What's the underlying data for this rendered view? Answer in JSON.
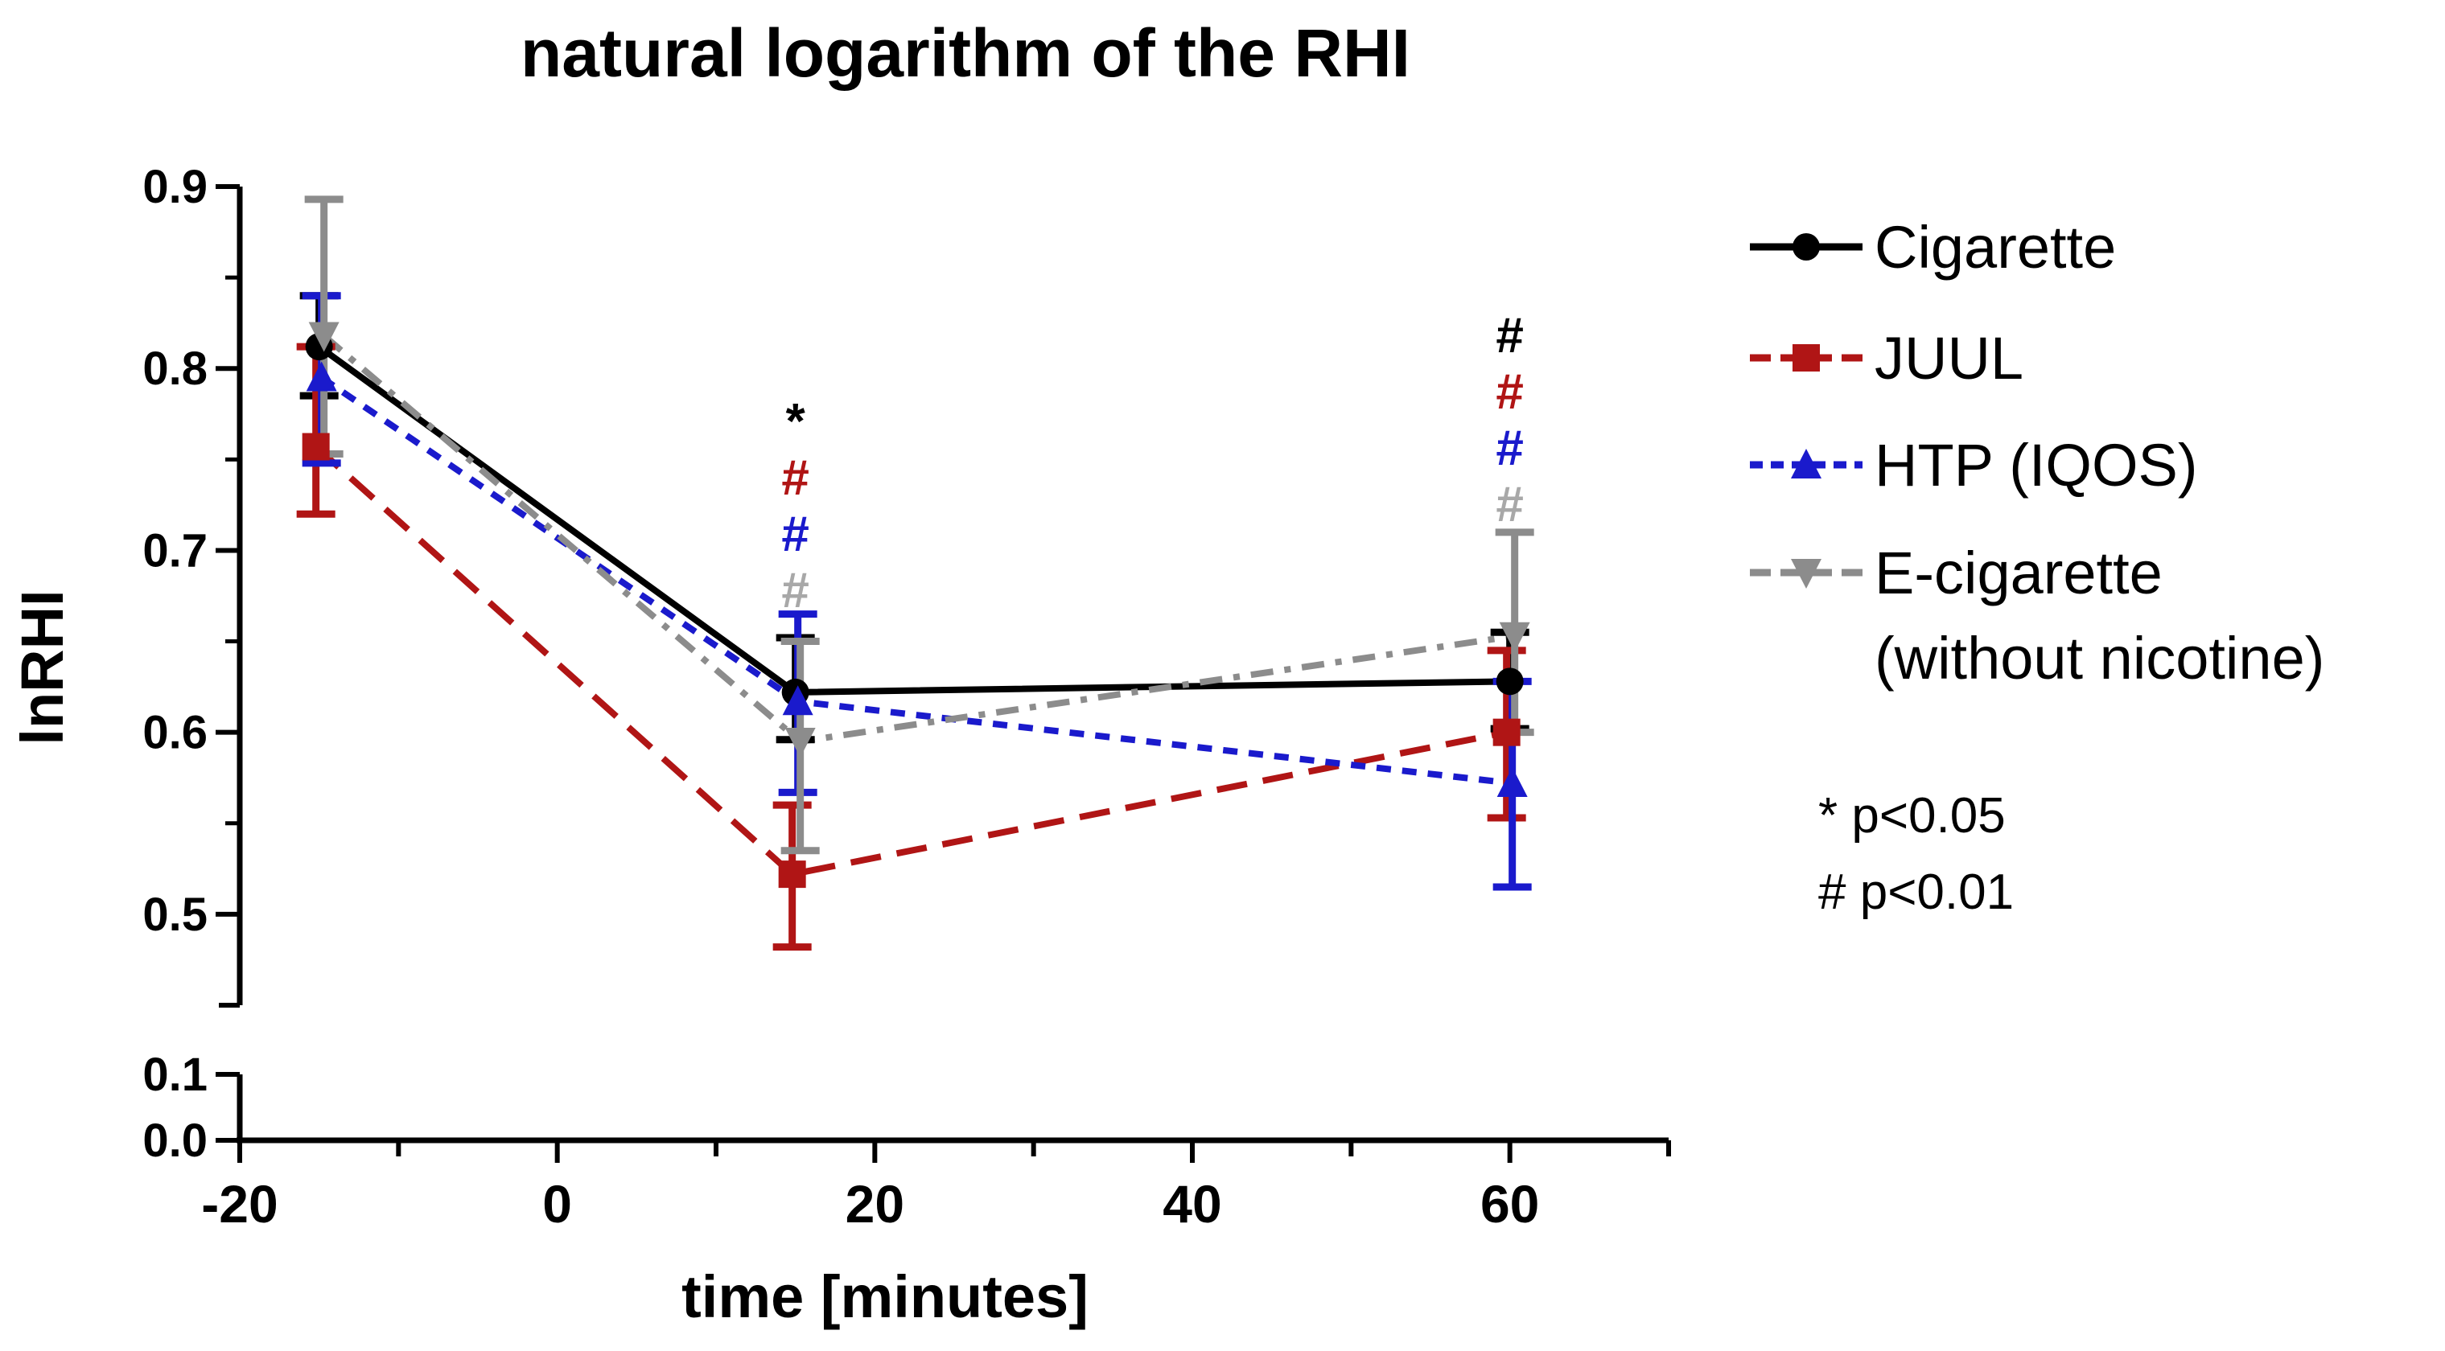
{
  "chart_data": {
    "type": "line",
    "title": "natural logarithm of the RHI",
    "xlabel": "time [minutes]",
    "ylabel": "lnRHI",
    "xlim": [
      -20,
      70
    ],
    "x_ticks": [
      "-20",
      "0",
      "20",
      "40",
      "60"
    ],
    "y_ticks_upper": [
      "0.9",
      "0.8",
      "0.7",
      "0.6",
      "0.5"
    ],
    "y_ticks_lower": [
      "0.1",
      "0.0"
    ],
    "ylim_upper": [
      0.45,
      0.9
    ],
    "ylim_lower": [
      0.0,
      0.1
    ],
    "x": [
      -15,
      15,
      60
    ],
    "series": [
      {
        "name": "Cigarette",
        "color": "#000000",
        "dash": "solid",
        "marker": "circle",
        "values": [
          0.812,
          0.622,
          0.628
        ],
        "err_hi": [
          0.84,
          0.652,
          0.655
        ],
        "err_lo": [
          0.785,
          0.596,
          0.602
        ]
      },
      {
        "name": "JUUL",
        "color": "#b01515",
        "dash": "long-dash",
        "marker": "square",
        "values": [
          0.757,
          0.522,
          0.6
        ],
        "err_hi": [
          0.812,
          0.56,
          0.645
        ],
        "err_lo": [
          0.72,
          0.482,
          0.553
        ]
      },
      {
        "name": "HTP (IQOS)",
        "color": "#1a1acc",
        "dash": "short-dash",
        "marker": "triangle-up",
        "values": [
          0.795,
          0.617,
          0.572
        ],
        "err_hi": [
          0.84,
          0.665,
          0.628
        ],
        "err_lo": [
          0.748,
          0.567,
          0.515
        ]
      },
      {
        "name": "E-cigarette",
        "name_line2": "(without nicotine)",
        "color": "#8c8c8c",
        "dash": "dash-dot",
        "marker": "triangle-down",
        "values": [
          0.818,
          0.595,
          0.653
        ],
        "err_hi": [
          0.893,
          0.65,
          0.71
        ],
        "err_lo": [
          0.753,
          0.535,
          0.6
        ]
      }
    ],
    "significance": [
      {
        "x": 15,
        "marks": [
          {
            "text": "*",
            "color": "#000000"
          },
          {
            "text": "#",
            "color": "#b01515"
          },
          {
            "text": "#",
            "color": "#1a1acc"
          },
          {
            "text": "#",
            "color": "#a8a8a8"
          }
        ]
      },
      {
        "x": 60,
        "marks": [
          {
            "text": "#",
            "color": "#000000"
          },
          {
            "text": "#",
            "color": "#b01515"
          },
          {
            "text": "#",
            "color": "#1a1acc"
          },
          {
            "text": "#",
            "color": "#a8a8a8"
          }
        ]
      }
    ],
    "notes": [
      "* p<0.05",
      "# p<0.01"
    ]
  }
}
